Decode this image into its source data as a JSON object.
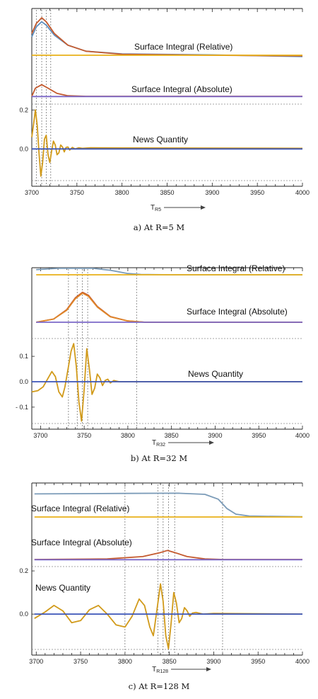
{
  "chart_data": [
    {
      "type": "line",
      "caption": "a) At R=5 M",
      "xlabel": "T",
      "xlabel_sub": "R5",
      "xlim": [
        3700,
        4000
      ],
      "x_ticks": [
        "3700",
        "3750",
        "3800",
        "3850",
        "3900",
        "3950",
        "4000"
      ],
      "y_ticks": [
        "0.2",
        "0.0"
      ],
      "ylim": [
        -0.17,
        0.23
      ],
      "panel_labels": {
        "relative": "Surface Integral (Relative)",
        "absolute": "Surface Integral (Absolute)",
        "news": "News Quantity"
      },
      "markers": [
        3705,
        3711,
        3716,
        3721
      ],
      "relative": {
        "series": [
          {
            "color": "#5e8fbf",
            "points": [
              [
                3700,
                0.55
              ],
              [
                3705,
                0.85
              ],
              [
                3711,
                1.0
              ],
              [
                3716,
                0.9
              ],
              [
                3725,
                0.6
              ],
              [
                3740,
                0.3
              ],
              [
                3760,
                0.12
              ],
              [
                3800,
                0.04
              ],
              [
                3900,
                0.01
              ],
              [
                4000,
                -0.04
              ]
            ]
          },
          {
            "color": "#c45a2e",
            "points": [
              [
                3700,
                0.65
              ],
              [
                3705,
                0.95
              ],
              [
                3711,
                1.12
              ],
              [
                3716,
                1.0
              ],
              [
                3725,
                0.65
              ],
              [
                3740,
                0.3
              ],
              [
                3760,
                0.12
              ],
              [
                3800,
                0.03
              ],
              [
                3900,
                0.0
              ],
              [
                4000,
                -0.02
              ]
            ]
          },
          {
            "color": "#e8b01a",
            "points": [
              [
                3700,
                0.0
              ],
              [
                4000,
                0.0
              ]
            ]
          }
        ]
      },
      "absolute": {
        "series": [
          {
            "color": "#c45a2e",
            "points": [
              [
                3700,
                0.0
              ],
              [
                3704,
                0.7
              ],
              [
                3711,
                1.0
              ],
              [
                3718,
                0.7
              ],
              [
                3728,
                0.25
              ],
              [
                3740,
                0.05
              ],
              [
                3760,
                0.0
              ],
              [
                4000,
                0.0
              ]
            ]
          },
          {
            "color": "#7b68c8",
            "points": [
              [
                3700,
                -0.02
              ],
              [
                4000,
                -0.02
              ]
            ]
          }
        ]
      },
      "news": {
        "series": [
          {
            "color": "#d19a1a",
            "points": [
              [
                3700,
                0.06
              ],
              [
                3702,
                0.13
              ],
              [
                3704,
                0.2
              ],
              [
                3706,
                0.12
              ],
              [
                3708,
                -0.02
              ],
              [
                3710,
                -0.14
              ],
              [
                3712,
                -0.07
              ],
              [
                3714,
                0.05
              ],
              [
                3716,
                0.07
              ],
              [
                3718,
                -0.03
              ],
              [
                3720,
                -0.07
              ],
              [
                3722,
                -0.01
              ],
              [
                3724,
                0.04
              ],
              [
                3726,
                0.02
              ],
              [
                3728,
                -0.03
              ],
              [
                3730,
                -0.02
              ],
              [
                3732,
                0.02
              ],
              [
                3734,
                0.01
              ],
              [
                3736,
                -0.015
              ],
              [
                3738,
                0.008
              ],
              [
                3740,
                0.01
              ],
              [
                3742,
                -0.006
              ],
              [
                3745,
                0.008
              ],
              [
                3748,
                0.0
              ],
              [
                3752,
                0.006
              ],
              [
                3756,
                0.003
              ],
              [
                3765,
                0.006
              ],
              [
                3800,
                0.005
              ],
              [
                4000,
                0.003
              ]
            ]
          },
          {
            "color": "#3b55b8",
            "points": [
              [
                3700,
                0.0
              ],
              [
                4000,
                0.0
              ]
            ]
          }
        ]
      }
    },
    {
      "type": "line",
      "caption": "b) At R=32 M",
      "xlabel": "T",
      "xlabel_sub": "R32",
      "xlim": [
        3690,
        4000
      ],
      "x_ticks": [
        "3700",
        "3750",
        "3800",
        "3850",
        "3900",
        "3950",
        "4000"
      ],
      "y_ticks": [
        "0.1",
        "0.0",
        "- 0.1"
      ],
      "ylim": [
        -0.17,
        0.17
      ],
      "panel_labels": {
        "relative": "Surface Integral (Relative)",
        "absolute": "Surface Integral (Absolute)",
        "news": "News Quantity"
      },
      "markers": [
        3732,
        3742,
        3748,
        3754,
        3810
      ],
      "relative": {
        "series": [
          {
            "color": "#7b9bb8",
            "points": [
              [
                3695,
                0.8
              ],
              [
                3720,
                1.0
              ],
              [
                3760,
                1.0
              ],
              [
                3780,
                0.7
              ],
              [
                3800,
                0.2
              ],
              [
                3815,
                0.05
              ],
              [
                3850,
                0.0
              ],
              [
                4000,
                0.0
              ]
            ]
          },
          {
            "color": "#e8b01a",
            "points": [
              [
                3695,
                0.0
              ],
              [
                4000,
                0.0
              ]
            ]
          }
        ]
      },
      "absolute": {
        "series": [
          {
            "color": "#c45a2e",
            "points": [
              [
                3695,
                0.0
              ],
              [
                3715,
                0.1
              ],
              [
                3730,
                0.4
              ],
              [
                3740,
                0.78
              ],
              [
                3748,
                0.95
              ],
              [
                3755,
                0.85
              ],
              [
                3765,
                0.5
              ],
              [
                3780,
                0.18
              ],
              [
                3800,
                0.04
              ],
              [
                3820,
                0.0
              ],
              [
                4000,
                0.0
              ]
            ]
          },
          {
            "color": "#e0872a",
            "points": [
              [
                3695,
                0.0
              ],
              [
                3715,
                0.1
              ],
              [
                3730,
                0.38
              ],
              [
                3740,
                0.75
              ],
              [
                3748,
                0.92
              ],
              [
                3755,
                0.82
              ],
              [
                3765,
                0.48
              ],
              [
                3780,
                0.17
              ],
              [
                3800,
                0.04
              ],
              [
                3820,
                0.0
              ],
              [
                4000,
                0.0
              ]
            ]
          },
          {
            "color": "#7b68c8",
            "points": [
              [
                3695,
                0.0
              ],
              [
                4000,
                0.0
              ]
            ]
          }
        ]
      },
      "news": {
        "series": [
          {
            "color": "#d19a1a",
            "points": [
              [
                3690,
                -0.04
              ],
              [
                3697,
                -0.035
              ],
              [
                3703,
                -0.02
              ],
              [
                3708,
                0.01
              ],
              [
                3713,
                0.04
              ],
              [
                3717,
                0.02
              ],
              [
                3721,
                -0.04
              ],
              [
                3725,
                -0.06
              ],
              [
                3728,
                -0.02
              ],
              [
                3732,
                0.06
              ],
              [
                3735,
                0.12
              ],
              [
                3738,
                0.15
              ],
              [
                3741,
                0.06
              ],
              [
                3744,
                -0.08
              ],
              [
                3747,
                -0.155
              ],
              [
                3750,
                -0.03
              ],
              [
                3753,
                0.13
              ],
              [
                3756,
                0.05
              ],
              [
                3759,
                -0.05
              ],
              [
                3762,
                -0.025
              ],
              [
                3765,
                0.03
              ],
              [
                3768,
                0.015
              ],
              [
                3771,
                -0.015
              ],
              [
                3774,
                0.005
              ],
              [
                3777,
                0.01
              ],
              [
                3780,
                -0.005
              ],
              [
                3784,
                0.005
              ],
              [
                3790,
                0.0
              ],
              [
                4000,
                0.0
              ]
            ]
          },
          {
            "color": "#3b55b8",
            "points": [
              [
                3690,
                0.0
              ],
              [
                4000,
                0.0
              ]
            ]
          }
        ]
      }
    },
    {
      "type": "line",
      "caption": "c) At R=128 M",
      "xlabel": "T",
      "xlabel_sub": "R128",
      "xlim": [
        3695,
        4000
      ],
      "x_ticks": [
        "3700",
        "3750",
        "3800",
        "3850",
        "3900",
        "3950",
        "4000"
      ],
      "y_ticks": [
        "0.2",
        "0.0"
      ],
      "ylim": [
        -0.17,
        0.22
      ],
      "panel_labels": {
        "relative": "Surface Integral (Relative)",
        "absolute": "Surface Integral (Absolute)",
        "news": "News Quantity"
      },
      "markers": [
        3800,
        3837,
        3843,
        3849,
        3856,
        3910
      ],
      "relative": {
        "series": [
          {
            "color": "#7b9bb8",
            "points": [
              [
                3698,
                0.97
              ],
              [
                3800,
                0.99
              ],
              [
                3860,
                1.0
              ],
              [
                3890,
                0.95
              ],
              [
                3905,
                0.75
              ],
              [
                3915,
                0.35
              ],
              [
                3925,
                0.12
              ],
              [
                3940,
                0.04
              ],
              [
                4000,
                0.01
              ]
            ]
          },
          {
            "color": "#e8b01a",
            "points": [
              [
                3698,
                0.0
              ],
              [
                4000,
                0.0
              ]
            ]
          }
        ]
      },
      "absolute": {
        "series": [
          {
            "color": "#c45a2e",
            "points": [
              [
                3698,
                0.0
              ],
              [
                3780,
                0.05
              ],
              [
                3820,
                0.25
              ],
              [
                3840,
                0.6
              ],
              [
                3848,
                0.78
              ],
              [
                3856,
                0.6
              ],
              [
                3870,
                0.25
              ],
              [
                3890,
                0.05
              ],
              [
                3910,
                0.0
              ],
              [
                4000,
                0.0
              ]
            ]
          },
          {
            "color": "#7b68c8",
            "points": [
              [
                3698,
                -0.02
              ],
              [
                4000,
                -0.02
              ]
            ]
          }
        ]
      },
      "news": {
        "series": [
          {
            "color": "#d19a1a",
            "points": [
              [
                3698,
                -0.02
              ],
              [
                3710,
                0.01
              ],
              [
                3720,
                0.04
              ],
              [
                3730,
                0.015
              ],
              [
                3740,
                -0.04
              ],
              [
                3750,
                -0.03
              ],
              [
                3760,
                0.02
              ],
              [
                3770,
                0.04
              ],
              [
                3780,
                0.0
              ],
              [
                3790,
                -0.05
              ],
              [
                3800,
                -0.06
              ],
              [
                3808,
                -0.01
              ],
              [
                3816,
                0.07
              ],
              [
                3822,
                0.04
              ],
              [
                3828,
                -0.06
              ],
              [
                3832,
                -0.1
              ],
              [
                3836,
                0.02
              ],
              [
                3840,
                0.14
              ],
              [
                3843,
                0.06
              ],
              [
                3846,
                -0.1
              ],
              [
                3849,
                -0.16
              ],
              [
                3852,
                -0.04
              ],
              [
                3855,
                0.1
              ],
              [
                3858,
                0.05
              ],
              [
                3861,
                -0.04
              ],
              [
                3864,
                -0.02
              ],
              [
                3867,
                0.03
              ],
              [
                3870,
                0.015
              ],
              [
                3873,
                -0.01
              ],
              [
                3876,
                0.005
              ],
              [
                3880,
                0.008
              ],
              [
                3888,
                0.0
              ],
              [
                3900,
                0.003
              ],
              [
                4000,
                0.0
              ]
            ]
          },
          {
            "color": "#3b55b8",
            "points": [
              [
                3698,
                0.0
              ],
              [
                4000,
                0.0
              ]
            ]
          }
        ]
      }
    }
  ]
}
